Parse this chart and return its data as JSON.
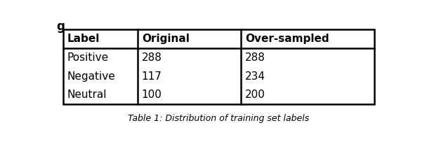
{
  "title_fragment": "g",
  "caption": "Table 1: Distribution of training set labels",
  "headers": [
    "Label",
    "Original",
    "Over-sampled"
  ],
  "rows": [
    [
      "Positive",
      "288",
      "288"
    ],
    [
      "Negative",
      "117",
      "234"
    ],
    [
      "Neutral",
      "100",
      "200"
    ]
  ],
  "background_color": "#ffffff",
  "header_fontsize": 11,
  "cell_fontsize": 11,
  "caption_fontsize": 9,
  "title_fontsize": 12
}
